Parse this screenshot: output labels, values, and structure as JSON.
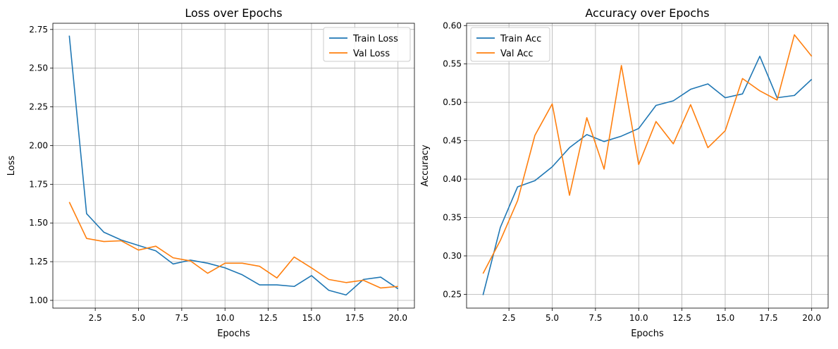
{
  "colors": {
    "series1": "#1f77b4",
    "series2": "#ff7f0e",
    "grid": "#b0b0b0",
    "axis": "#000000"
  },
  "chart_data": [
    {
      "type": "line",
      "title": "Loss over Epochs",
      "xlabel": "Epochs",
      "ylabel": "Loss",
      "xlim": [
        0.05,
        20.95
      ],
      "ylim": [
        0.95,
        2.79
      ],
      "xticks": [
        2.5,
        5.0,
        7.5,
        10.0,
        12.5,
        15.0,
        17.5,
        20.0
      ],
      "xtick_labels": [
        "2.5",
        "5.0",
        "7.5",
        "10.0",
        "12.5",
        "15.0",
        "17.5",
        "20.0"
      ],
      "yticks": [
        1.0,
        1.25,
        1.5,
        1.75,
        2.0,
        2.25,
        2.5,
        2.75
      ],
      "ytick_labels": [
        "1.00",
        "1.25",
        "1.50",
        "1.75",
        "2.00",
        "2.25",
        "2.50",
        "2.75"
      ],
      "grid": true,
      "legend": "top-right",
      "x": [
        1,
        2,
        3,
        4,
        5,
        6,
        7,
        8,
        9,
        10,
        11,
        12,
        13,
        14,
        15,
        16,
        17,
        18,
        19,
        20
      ],
      "series": [
        {
          "name": "Train Loss",
          "color": "#1f77b4",
          "values": [
            2.71,
            1.56,
            1.44,
            1.39,
            1.355,
            1.32,
            1.235,
            1.26,
            1.24,
            1.21,
            1.165,
            1.1,
            1.1,
            1.09,
            1.16,
            1.065,
            1.035,
            1.135,
            1.15,
            1.075
          ]
        },
        {
          "name": "Val Loss",
          "color": "#ff7f0e",
          "values": [
            1.635,
            1.4,
            1.38,
            1.385,
            1.325,
            1.35,
            1.275,
            1.255,
            1.175,
            1.24,
            1.24,
            1.22,
            1.145,
            1.28,
            1.21,
            1.135,
            1.115,
            1.13,
            1.08,
            1.09
          ]
        }
      ]
    },
    {
      "type": "line",
      "title": "Accuracy over Epochs",
      "xlabel": "Epochs",
      "ylabel": "Accuracy",
      "xlim": [
        0.05,
        20.95
      ],
      "ylim": [
        0.232,
        0.603
      ],
      "xticks": [
        2.5,
        5.0,
        7.5,
        10.0,
        12.5,
        15.0,
        17.5,
        20.0
      ],
      "xtick_labels": [
        "2.5",
        "5.0",
        "7.5",
        "10.0",
        "12.5",
        "15.0",
        "17.5",
        "20.0"
      ],
      "yticks": [
        0.25,
        0.3,
        0.35,
        0.4,
        0.45,
        0.5,
        0.55,
        0.6
      ],
      "ytick_labels": [
        "0.25",
        "0.30",
        "0.35",
        "0.40",
        "0.45",
        "0.50",
        "0.55",
        "0.60"
      ],
      "grid": true,
      "legend": "top-left",
      "x": [
        1,
        2,
        3,
        4,
        5,
        6,
        7,
        8,
        9,
        10,
        11,
        12,
        13,
        14,
        15,
        16,
        17,
        18,
        19,
        20
      ],
      "series": [
        {
          "name": "Train Acc",
          "color": "#1f77b4",
          "values": [
            0.249,
            0.337,
            0.39,
            0.398,
            0.416,
            0.441,
            0.458,
            0.449,
            0.456,
            0.466,
            0.496,
            0.502,
            0.517,
            0.524,
            0.506,
            0.511,
            0.56,
            0.506,
            0.509,
            0.53
          ]
        },
        {
          "name": "Val Acc",
          "color": "#ff7f0e",
          "values": [
            0.277,
            0.32,
            0.372,
            0.457,
            0.498,
            0.379,
            0.48,
            0.413,
            0.548,
            0.419,
            0.475,
            0.446,
            0.497,
            0.441,
            0.463,
            0.531,
            0.515,
            0.503,
            0.588,
            0.56
          ]
        }
      ]
    }
  ]
}
